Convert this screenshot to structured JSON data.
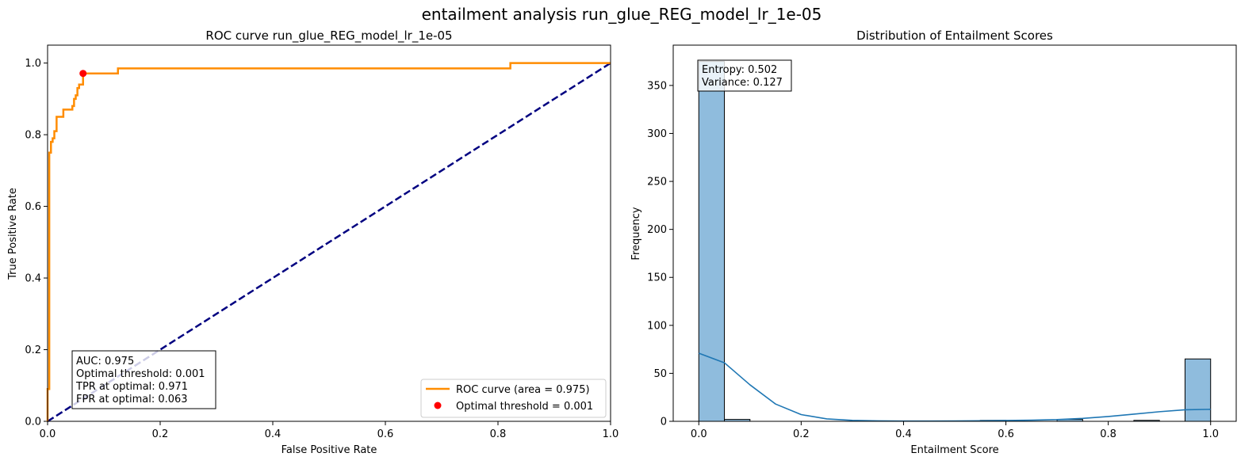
{
  "suptitle": "entailment analysis run_glue_REG_model_lr_1e-05",
  "chart_data": [
    {
      "type": "line",
      "title": "ROC curve run_glue_REG_model_lr_1e-05",
      "xlabel": "False Positive Rate",
      "ylabel": "True Positive Rate",
      "xlim": [
        0,
        1
      ],
      "ylim": [
        0,
        1.05
      ],
      "xticks": [
        "0.0",
        "0.2",
        "0.4",
        "0.6",
        "0.8",
        "1.0"
      ],
      "yticks": [
        "0.0",
        "0.2",
        "0.4",
        "0.6",
        "0.8",
        "1.0"
      ],
      "series": [
        {
          "name": "ROC curve (area = 0.975)",
          "color": "#ff8c00",
          "x": [
            0,
            0,
            0.003,
            0.003,
            0.006,
            0.006,
            0.009,
            0.009,
            0.012,
            0.012,
            0.016,
            0.016,
            0.028,
            0.028,
            0.031,
            0.031,
            0.044,
            0.044,
            0.047,
            0.047,
            0.05,
            0.05,
            0.053,
            0.053,
            0.056,
            0.056,
            0.063,
            0.063,
            0.125,
            0.125,
            0.822,
            0.822,
            1.0
          ],
          "y": [
            0,
            0.09,
            0.09,
            0.75,
            0.75,
            0.78,
            0.78,
            0.79,
            0.79,
            0.81,
            0.81,
            0.85,
            0.85,
            0.87,
            0.87,
            0.87,
            0.87,
            0.88,
            0.88,
            0.9,
            0.9,
            0.91,
            0.91,
            0.93,
            0.93,
            0.94,
            0.94,
            0.971,
            0.971,
            0.985,
            0.985,
            1.0,
            1.0
          ]
        },
        {
          "name": "",
          "color": "#000080",
          "dashed": true,
          "x": [
            0,
            1
          ],
          "y": [
            0,
            1
          ]
        }
      ],
      "optimal_point": {
        "name": "Optimal threshold = 0.001",
        "x": 0.063,
        "y": 0.971,
        "color": "#ff0000"
      },
      "info_box": [
        "AUC: 0.975",
        "Optimal threshold: 0.001",
        "TPR at optimal: 0.971",
        "FPR at optimal: 0.063"
      ],
      "legend": {
        "placement": "lower right",
        "items": [
          "ROC curve (area = 0.975)",
          "Optimal threshold = 0.001"
        ]
      }
    },
    {
      "type": "bar",
      "subtype": "histogram",
      "title": "Distribution of Entailment Scores",
      "xlabel": "Entailment Score",
      "ylabel": "Frequency",
      "xlim": [
        -0.05,
        1.05
      ],
      "ylim": [
        0,
        392
      ],
      "xticks": [
        "0.0",
        "0.2",
        "0.4",
        "0.6",
        "0.8",
        "1.0"
      ],
      "yticks": [
        "0",
        "50",
        "100",
        "150",
        "200",
        "250",
        "300",
        "350"
      ],
      "bin_edges": [
        0,
        0.05,
        0.1,
        0.15,
        0.2,
        0.25,
        0.3,
        0.35,
        0.4,
        0.45,
        0.5,
        0.55,
        0.6,
        0.65,
        0.7,
        0.75,
        0.8,
        0.85,
        0.9,
        0.95,
        1.0
      ],
      "values": [
        375,
        2,
        0,
        0,
        0,
        0,
        0,
        0,
        0,
        0,
        0,
        1,
        0,
        0,
        2,
        0,
        0,
        1,
        0,
        65
      ],
      "bar_color": "#8fbcdd",
      "kde": {
        "color": "#1f77b4",
        "x": [
          0,
          0.05,
          0.1,
          0.15,
          0.2,
          0.25,
          0.3,
          0.35,
          0.4,
          0.45,
          0.5,
          0.55,
          0.6,
          0.65,
          0.7,
          0.75,
          0.8,
          0.85,
          0.9,
          0.95,
          1.0
        ],
        "y": [
          71,
          61,
          38,
          18,
          7,
          2.5,
          1,
          0.5,
          0.3,
          0.3,
          0.4,
          0.6,
          0.9,
          1.2,
          1.8,
          3,
          5,
          7.5,
          10,
          12,
          12.5
        ]
      },
      "info_box": [
        "Entropy: 0.502",
        "Variance: 0.127"
      ]
    }
  ]
}
